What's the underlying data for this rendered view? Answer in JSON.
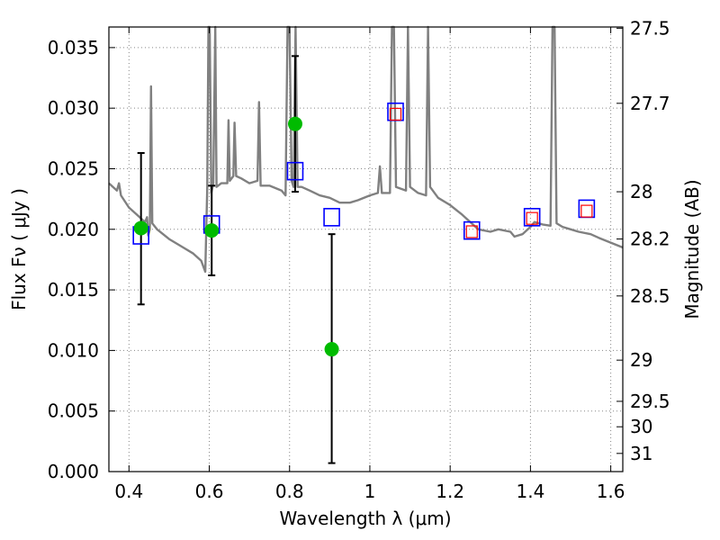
{
  "chart_data": {
    "type": "scatter",
    "title": "",
    "xlabel": "Wavelength  λ (μm)",
    "ylabel": "Flux  Fν  ( μJy )",
    "ylabel_right": "Magnitude (AB)",
    "xlim": [
      0.35,
      1.63
    ],
    "ylim": [
      0.0,
      0.0367
    ],
    "grid": true,
    "x_ticks": [
      0.4,
      0.6,
      0.8,
      1.0,
      1.2,
      1.4,
      1.6
    ],
    "x_tick_labels": [
      "0.4",
      "0.6",
      "0.8",
      "1",
      "1.2",
      "1.4",
      "1.6"
    ],
    "y_ticks": [
      0.0,
      0.005,
      0.01,
      0.015,
      0.02,
      0.025,
      0.03,
      0.035
    ],
    "y_tick_labels": [
      "0.000",
      "0.005",
      "0.010",
      "0.015",
      "0.020",
      "0.025",
      "0.030",
      "0.035"
    ],
    "right_ticks": [
      {
        "label": "27.5",
        "flux": 0.0366
      },
      {
        "label": "27.7",
        "flux": 0.0304
      },
      {
        "label": "28",
        "flux": 0.0231
      },
      {
        "label": "28.2",
        "flux": 0.0192
      },
      {
        "label": "28.5",
        "flux": 0.0145
      },
      {
        "label": "29",
        "flux": 0.0092
      },
      {
        "label": "29.5",
        "flux": 0.0058
      },
      {
        "label": "30",
        "flux": 0.0037
      },
      {
        "label": "31",
        "flux": 0.0015
      }
    ],
    "colors": {
      "sed": "#808080",
      "observed": "#00bb00",
      "model_box": "#0000ff",
      "model_inner": "#ff0000",
      "errorbar": "#000000",
      "grid": "#888888"
    },
    "series": [
      {
        "kind": "line",
        "points": [
          [
            0.35,
            0.0238
          ],
          [
            0.37,
            0.0232
          ],
          [
            0.375,
            0.0238
          ],
          [
            0.38,
            0.0228
          ],
          [
            0.4,
            0.0218
          ],
          [
            0.42,
            0.0212
          ],
          [
            0.44,
            0.0206
          ],
          [
            0.445,
            0.021
          ],
          [
            0.448,
            0.0195
          ],
          [
            0.452,
            0.02
          ],
          [
            0.455,
            0.0318
          ],
          [
            0.458,
            0.0205
          ],
          [
            0.47,
            0.02
          ],
          [
            0.5,
            0.0192
          ],
          [
            0.53,
            0.0186
          ],
          [
            0.56,
            0.018
          ],
          [
            0.58,
            0.0174
          ],
          [
            0.59,
            0.0165
          ],
          [
            0.595,
            0.0235
          ],
          [
            0.598,
            0.0367
          ],
          [
            0.601,
            0.0367
          ],
          [
            0.605,
            0.023
          ],
          [
            0.61,
            0.0238
          ],
          [
            0.615,
            0.0367
          ],
          [
            0.618,
            0.0235
          ],
          [
            0.63,
            0.0238
          ],
          [
            0.645,
            0.0238
          ],
          [
            0.648,
            0.029
          ],
          [
            0.651,
            0.024
          ],
          [
            0.66,
            0.0244
          ],
          [
            0.663,
            0.0288
          ],
          [
            0.667,
            0.0244
          ],
          [
            0.68,
            0.0242
          ],
          [
            0.7,
            0.0238
          ],
          [
            0.72,
            0.024
          ],
          [
            0.724,
            0.0305
          ],
          [
            0.728,
            0.0236
          ],
          [
            0.75,
            0.0236
          ],
          [
            0.78,
            0.0232
          ],
          [
            0.79,
            0.0228
          ],
          [
            0.795,
            0.0367
          ],
          [
            0.8,
            0.0367
          ],
          [
            0.805,
            0.024
          ],
          [
            0.81,
            0.0235
          ],
          [
            0.815,
            0.0367
          ],
          [
            0.82,
            0.0235
          ],
          [
            0.83,
            0.0235
          ],
          [
            0.85,
            0.0232
          ],
          [
            0.875,
            0.0228
          ],
          [
            0.9,
            0.0226
          ],
          [
            0.925,
            0.0222
          ],
          [
            0.95,
            0.0222
          ],
          [
            0.97,
            0.0224
          ],
          [
            1.0,
            0.0228
          ],
          [
            1.02,
            0.023
          ],
          [
            1.025,
            0.0252
          ],
          [
            1.03,
            0.023
          ],
          [
            1.05,
            0.023
          ],
          [
            1.055,
            0.0367
          ],
          [
            1.06,
            0.0367
          ],
          [
            1.065,
            0.0235
          ],
          [
            1.09,
            0.0232
          ],
          [
            1.095,
            0.0367
          ],
          [
            1.1,
            0.0235
          ],
          [
            1.12,
            0.023
          ],
          [
            1.14,
            0.0228
          ],
          [
            1.145,
            0.0367
          ],
          [
            1.15,
            0.0235
          ],
          [
            1.17,
            0.0226
          ],
          [
            1.2,
            0.022
          ],
          [
            1.23,
            0.0212
          ],
          [
            1.25,
            0.0206
          ],
          [
            1.27,
            0.02
          ],
          [
            1.3,
            0.0198
          ],
          [
            1.32,
            0.02
          ],
          [
            1.35,
            0.0198
          ],
          [
            1.36,
            0.0194
          ],
          [
            1.38,
            0.0196
          ],
          [
            1.4,
            0.0202
          ],
          [
            1.41,
            0.0206
          ],
          [
            1.43,
            0.0204
          ],
          [
            1.45,
            0.0203
          ],
          [
            1.455,
            0.0367
          ],
          [
            1.46,
            0.0367
          ],
          [
            1.465,
            0.0205
          ],
          [
            1.48,
            0.0202
          ],
          [
            1.5,
            0.02
          ],
          [
            1.52,
            0.0198
          ],
          [
            1.55,
            0.0196
          ],
          [
            1.57,
            0.0193
          ],
          [
            1.6,
            0.0189
          ],
          [
            1.63,
            0.0185
          ]
        ]
      },
      {
        "kind": "observed",
        "points": [
          {
            "x": 0.43,
            "y": 0.0201,
            "ylow": 0.0138,
            "yhigh": 0.0263
          },
          {
            "x": 0.606,
            "y": 0.0199,
            "ylow": 0.0162,
            "yhigh": 0.0236
          },
          {
            "x": 0.814,
            "y": 0.0287,
            "ylow": 0.0231,
            "yhigh": 0.0343
          },
          {
            "x": 0.905,
            "y": 0.0101,
            "ylow": 0.0007,
            "yhigh": 0.0196
          }
        ]
      },
      {
        "kind": "model_blue_boxes",
        "points": [
          {
            "x": 0.43,
            "y": 0.0195
          },
          {
            "x": 0.606,
            "y": 0.0204
          },
          {
            "x": 0.814,
            "y": 0.0248
          },
          {
            "x": 0.905,
            "y": 0.021
          },
          {
            "x": 1.064,
            "y": 0.0297
          },
          {
            "x": 1.254,
            "y": 0.0199
          },
          {
            "x": 1.404,
            "y": 0.021
          },
          {
            "x": 1.54,
            "y": 0.0217
          }
        ]
      },
      {
        "kind": "model_red_boxes",
        "points": [
          {
            "x": 1.064,
            "y": 0.0295
          },
          {
            "x": 1.254,
            "y": 0.0198
          },
          {
            "x": 1.404,
            "y": 0.0209
          },
          {
            "x": 1.54,
            "y": 0.0215
          }
        ]
      }
    ]
  }
}
